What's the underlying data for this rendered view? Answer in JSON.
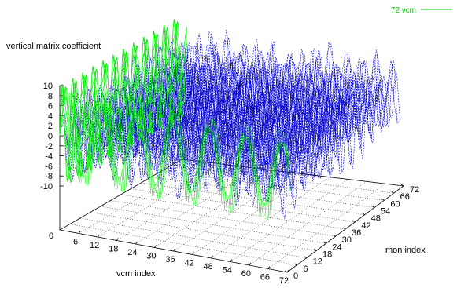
{
  "chart_data": {
    "type": "surface3d",
    "zlabel": "vertical matrix coefficient",
    "xlabel": "vcm index",
    "ylabel": "mon index",
    "legend": {
      "entries": [
        "72 vcm"
      ],
      "placement": "top-right"
    },
    "xrange": [
      0,
      72
    ],
    "yrange": [
      0,
      72
    ],
    "zrange": [
      -10,
      10
    ],
    "xticks": [
      "0",
      "6",
      "12",
      "18",
      "24",
      "30",
      "36",
      "42",
      "48",
      "54",
      "60",
      "66",
      "72"
    ],
    "yticks": [
      "0",
      "6",
      "12",
      "18",
      "24",
      "30",
      "36",
      "42",
      "48",
      "54",
      "60",
      "66",
      "72"
    ],
    "zticks": [
      "-10",
      "-8",
      "-6",
      "-4",
      "-2",
      "0",
      "2",
      "4",
      "6",
      "8",
      "10"
    ],
    "base_label": "0",
    "grid": true,
    "series": [
      {
        "name": "72 vcm",
        "color": "#00ee00",
        "description_values": {
          "x": 72,
          "z_amplitude": 10,
          "oscillation_period_mon": 6
        }
      }
    ],
    "surface_color": "#0000cc"
  }
}
